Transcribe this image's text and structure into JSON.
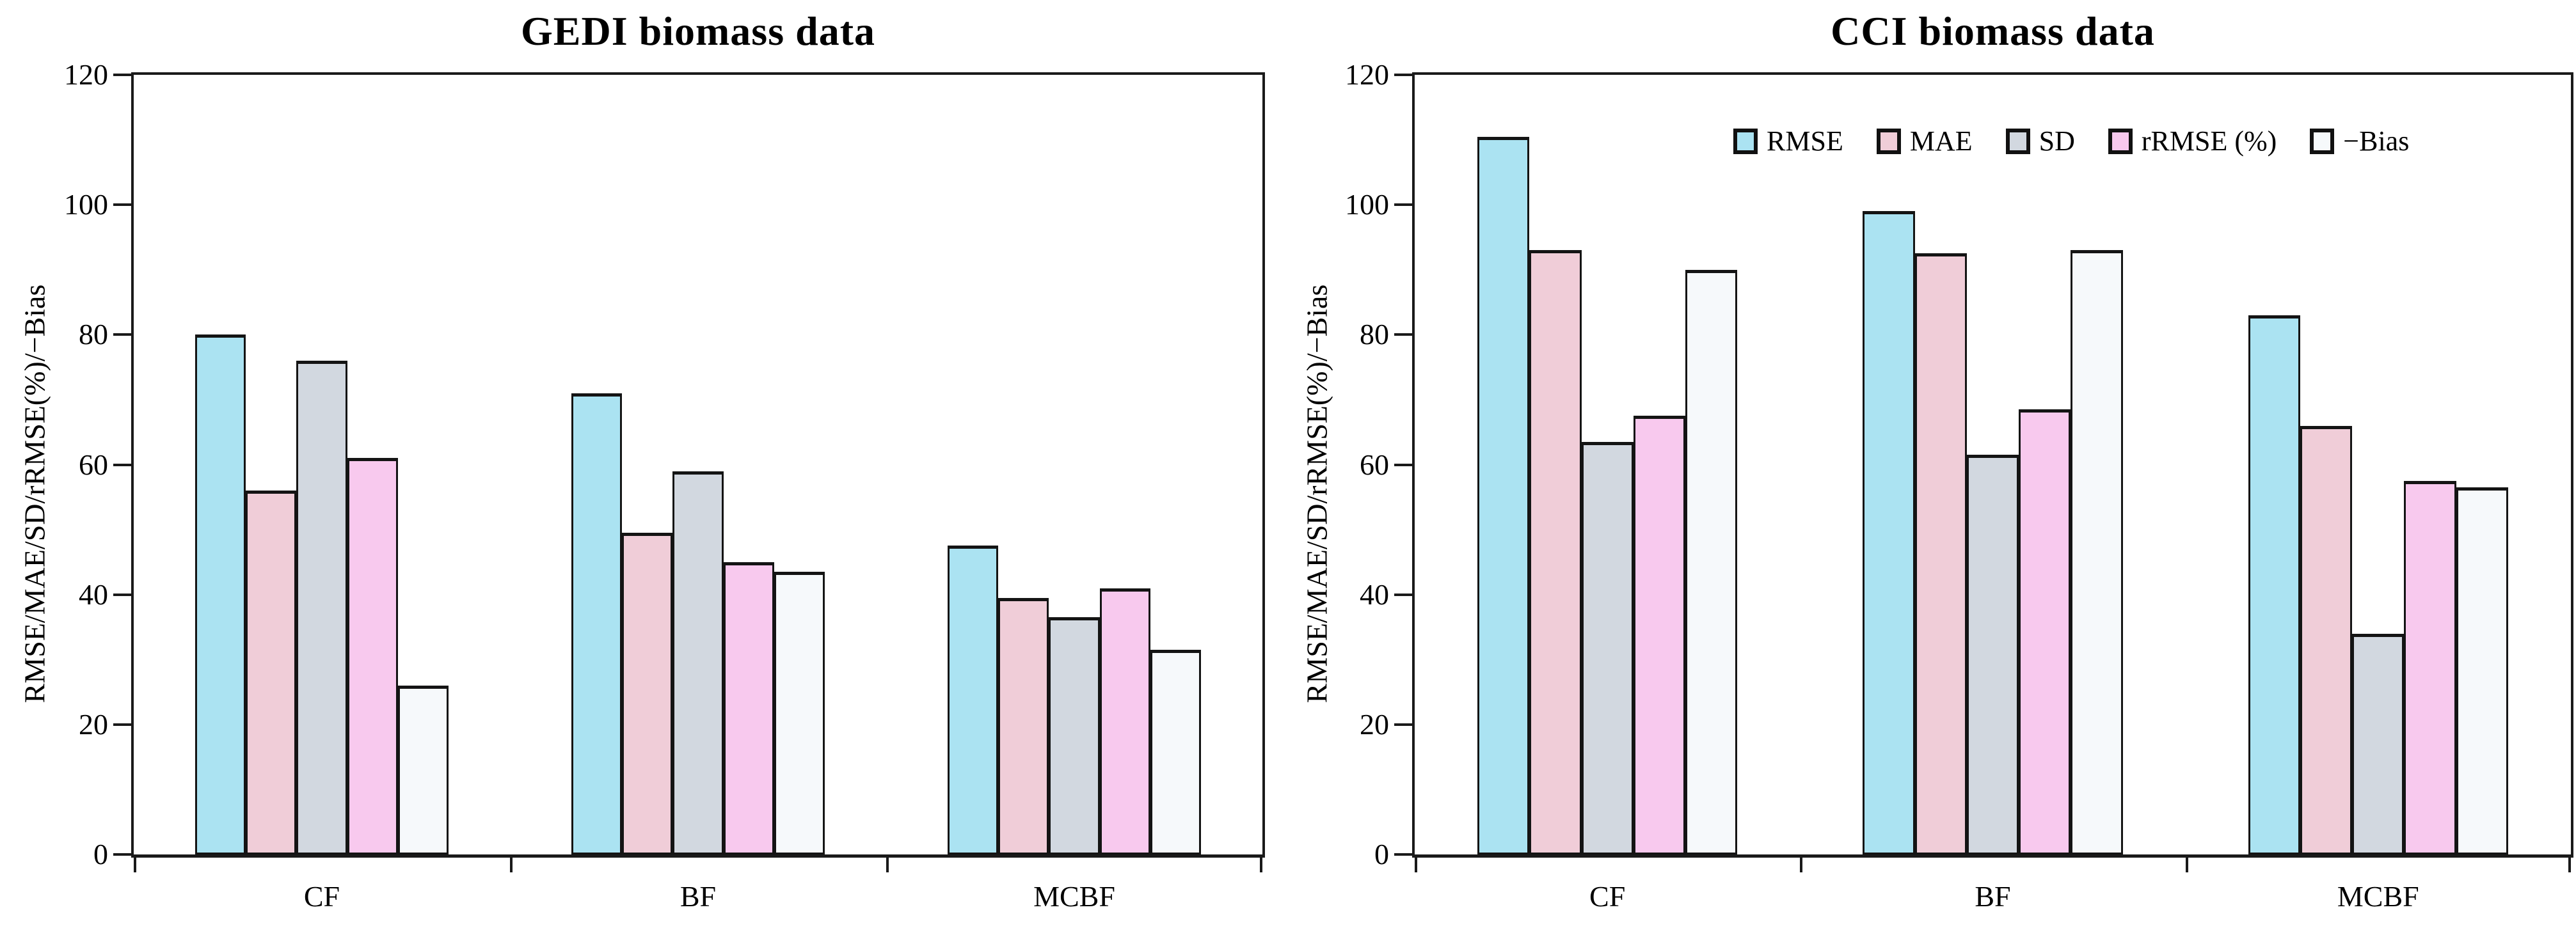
{
  "figure": {
    "background": "#ffffff",
    "axis_color": "#1a1a1a",
    "bar_border_color": "#141414",
    "text_color": "#000000"
  },
  "chart_data": [
    {
      "type": "bar",
      "title": "GEDI biomass data",
      "ylabel": "RMSE/MAE/SD/rRMSE(%)/−Bias",
      "xlabel": "",
      "categories": [
        "CF",
        "BF",
        "MCBF"
      ],
      "ylim": [
        0,
        120
      ],
      "yticks": [
        0,
        20,
        40,
        60,
        80,
        100,
        120
      ],
      "grid": false,
      "legend_visible": false,
      "series": [
        {
          "name": "RMSE",
          "color": "#abe3f2",
          "values": [
            80,
            71,
            47.5
          ]
        },
        {
          "name": "MAE",
          "color": "#f0cdd8",
          "values": [
            56,
            49.5,
            39.5
          ]
        },
        {
          "name": "SD",
          "color": "#d2d8e0",
          "values": [
            76,
            59,
            36.5
          ]
        },
        {
          "name": "rRMSE (%)",
          "color": "#f8c9ee",
          "values": [
            61,
            45,
            41
          ]
        },
        {
          "name": "−Bias",
          "color": "#f6f9fb",
          "values": [
            26,
            43.5,
            31.5
          ]
        }
      ]
    },
    {
      "type": "bar",
      "title": "CCI biomass data",
      "ylabel": "RMSE/MAE/SD/rRMSE(%)/−Bias",
      "xlabel": "",
      "categories": [
        "CF",
        "BF",
        "MCBF"
      ],
      "ylim": [
        0,
        120
      ],
      "yticks": [
        0,
        20,
        40,
        60,
        80,
        100,
        120
      ],
      "grid": false,
      "legend_visible": true,
      "legend_position": "top-right-inside",
      "series": [
        {
          "name": "RMSE",
          "color": "#abe3f2",
          "values": [
            110.5,
            99,
            83
          ]
        },
        {
          "name": "MAE",
          "color": "#f0cdd8",
          "values": [
            93,
            92.5,
            66
          ]
        },
        {
          "name": "SD",
          "color": "#d2d8e0",
          "values": [
            63.5,
            61.5,
            34
          ]
        },
        {
          "name": "rRMSE (%)",
          "color": "#f8c9ee",
          "values": [
            67.5,
            68.5,
            57.5
          ]
        },
        {
          "name": "−Bias",
          "color": "#f6f9fb",
          "values": [
            90,
            93,
            56.5
          ]
        }
      ]
    }
  ]
}
